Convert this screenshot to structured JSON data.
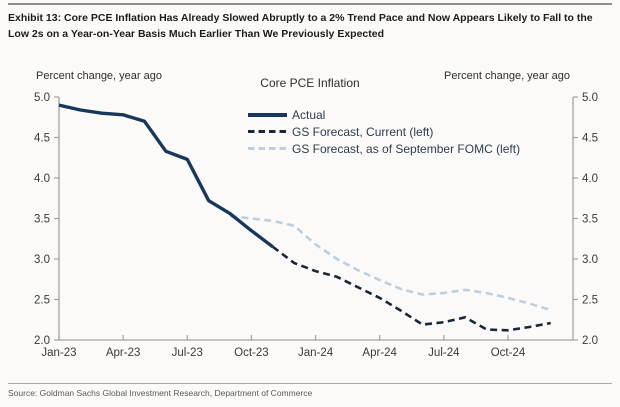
{
  "exhibit": {
    "title": "Exhibit 13: Core PCE Inflation Has Already Slowed Abruptly to a 2% Trend Pace and Now Appears Likely to Fall to the Low 2s on a Year-on-Year Basis Much Earlier Than We Previously Expected",
    "source": "Source: Goldman Sachs Global Investment Research, Department of Commerce"
  },
  "chart_data": {
    "type": "line",
    "title": "Core PCE Inflation",
    "left_axis_label": "Percent change, year ago",
    "right_axis_label": "Percent change, year ago",
    "ylim": [
      2.0,
      5.0
    ],
    "y_ticks": [
      5.0,
      4.5,
      4.0,
      3.5,
      3.0,
      2.5,
      2.0
    ],
    "grid": false,
    "legend_position": "top-center-inside",
    "x": [
      "Jan-23",
      "Feb-23",
      "Mar-23",
      "Apr-23",
      "May-23",
      "Jun-23",
      "Jul-23",
      "Aug-23",
      "Sep-23",
      "Oct-23",
      "Nov-23",
      "Dec-23",
      "Jan-24",
      "Feb-24",
      "Mar-24",
      "Apr-24",
      "May-24",
      "Jun-24",
      "Jul-24",
      "Aug-24",
      "Sep-24",
      "Oct-24",
      "Nov-24",
      "Dec-24"
    ],
    "x_tick_labels": [
      "Jan-23",
      "Apr-23",
      "Jul-23",
      "Oct-23",
      "Jan-24",
      "Apr-24",
      "Jul-24",
      "Oct-24"
    ],
    "x_tick_indices": [
      0,
      3,
      6,
      9,
      12,
      15,
      18,
      21
    ],
    "series": [
      {
        "name": "Actual",
        "style": "solid",
        "color": "#17375d",
        "values": [
          4.9,
          4.84,
          4.8,
          4.78,
          4.7,
          4.33,
          4.23,
          3.72,
          3.56,
          3.35,
          3.15,
          null,
          null,
          null,
          null,
          null,
          null,
          null,
          null,
          null,
          null,
          null,
          null,
          null
        ]
      },
      {
        "name": "GS Forecast, Current (left)",
        "style": "dashed",
        "color": "#1b2739",
        "values": [
          null,
          null,
          null,
          null,
          null,
          null,
          null,
          null,
          null,
          null,
          3.15,
          2.95,
          2.85,
          2.78,
          2.65,
          2.52,
          2.36,
          2.19,
          2.22,
          2.28,
          2.13,
          2.12,
          2.16,
          2.21
        ]
      },
      {
        "name": "GS Forecast, as of September FOMC (left)",
        "style": "dashed",
        "color": "#bdcfdf",
        "values": [
          null,
          null,
          null,
          null,
          null,
          null,
          null,
          null,
          3.53,
          3.5,
          3.47,
          3.41,
          3.18,
          3.0,
          2.86,
          2.74,
          2.63,
          2.56,
          2.58,
          2.62,
          2.58,
          2.52,
          2.45,
          2.37
        ]
      }
    ]
  }
}
